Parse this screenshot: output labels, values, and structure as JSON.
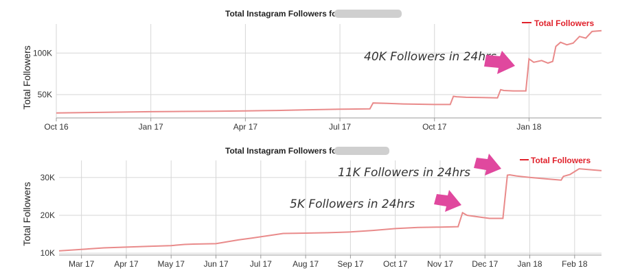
{
  "colors": {
    "series": "#e98a8a",
    "legend": "#e0202a",
    "arrow": "#e0489e"
  },
  "chart_data": [
    {
      "type": "line",
      "title": "Total Instagram Followers for",
      "ylabel": "Total Followers",
      "legend": "Total Followers",
      "legend_position": "top-right",
      "grid": true,
      "ylim": [
        22000,
        135000
      ],
      "yticks": [
        50000,
        100000
      ],
      "ytick_labels": [
        "50K",
        "100K"
      ],
      "xlim": [
        0,
        17.3
      ],
      "xtick_positions": [
        0,
        3,
        6,
        9,
        12,
        15
      ],
      "xtick_labels": [
        "Oct 16",
        "Jan 17",
        "Apr 17",
        "Jul 17",
        "Oct 17",
        "Jan 18"
      ],
      "series": [
        {
          "name": "Total Followers",
          "x": [
            0,
            1,
            2,
            3,
            4,
            5,
            6,
            7,
            8,
            9,
            9.95,
            10.05,
            10.5,
            11,
            11.5,
            12,
            12.5,
            12.6,
            12.7,
            13,
            13.5,
            14,
            14.1,
            14.2,
            14.5,
            14.9,
            15.0,
            15.15,
            15.4,
            15.6,
            15.75,
            15.85,
            16.0,
            16.2,
            16.4,
            16.6,
            16.8,
            17.0,
            17.3
          ],
          "values": [
            28000,
            28500,
            29000,
            29500,
            29800,
            30000,
            30500,
            31000,
            31800,
            32500,
            33000,
            40000,
            39500,
            38800,
            38500,
            38200,
            38200,
            48000,
            47500,
            46800,
            46500,
            46200,
            56000,
            55000,
            54500,
            54500,
            93000,
            89000,
            91000,
            88000,
            90000,
            108000,
            113000,
            110000,
            112000,
            120000,
            118000,
            126000,
            127000
          ]
        }
      ]
    },
    {
      "type": "line",
      "title": "Total Instagram Followers for",
      "ylabel": "Total Followers",
      "legend": "Total Followers",
      "legend_position": "top-right",
      "grid": true,
      "ylim": [
        9500,
        34500
      ],
      "yticks": [
        10000,
        20000,
        30000
      ],
      "ytick_labels": [
        "10K",
        "20K",
        "30K"
      ],
      "xlim": [
        0,
        12.1
      ],
      "xtick_positions": [
        0.5,
        1.5,
        2.5,
        3.5,
        4.5,
        5.5,
        6.5,
        7.5,
        8.5,
        9.5,
        10.5,
        11.5
      ],
      "xtick_labels": [
        "Mar 17",
        "Apr 17",
        "May 17",
        "Jun 17",
        "Jul 17",
        "Aug 17",
        "Sep 17",
        "Oct 17",
        "Nov 17",
        "Dec 17",
        "Jan 18",
        "Feb 18"
      ],
      "series": [
        {
          "name": "Total Followers",
          "x": [
            0,
            0.5,
            1,
            1.5,
            2,
            2.5,
            2.8,
            3,
            3.5,
            4,
            4.3,
            4.6,
            5,
            5.5,
            6,
            6.5,
            7,
            7.5,
            8,
            8.5,
            8.9,
            9,
            9.1,
            9.4,
            9.6,
            9.9,
            10,
            10.05,
            10.2,
            10.5,
            10.8,
            11,
            11.2,
            11.25,
            11.4,
            11.6,
            11.8,
            12.1
          ],
          "values": [
            10600,
            11000,
            11400,
            11600,
            11800,
            12000,
            12300,
            12400,
            12500,
            13500,
            14000,
            14500,
            15200,
            15300,
            15400,
            15600,
            16000,
            16500,
            16800,
            16900,
            17000,
            20700,
            20000,
            19500,
            19200,
            19200,
            30600,
            30700,
            30400,
            30000,
            29700,
            29500,
            29300,
            30300,
            30800,
            32300,
            32100,
            31800
          ]
        }
      ]
    }
  ],
  "annotations": {
    "top_label": "40K Followers in 24hrs",
    "bottom_label_1": "11K Followers in 24hrs",
    "bottom_label_2": "5K Followers in 24hrs"
  }
}
